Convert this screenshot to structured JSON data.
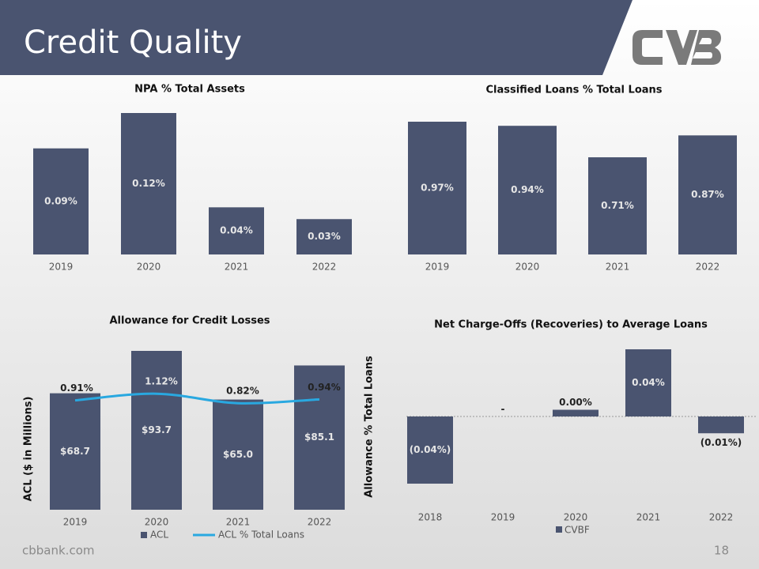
{
  "slide": {
    "title": "Credit Quality",
    "footer": "cbbank.com",
    "page_number": "18"
  },
  "chart_data": [
    {
      "type": "bar",
      "title": "NPA % Total Assets",
      "categories": [
        "2019",
        "2020",
        "2021",
        "2022"
      ],
      "values": [
        0.09,
        0.12,
        0.04,
        0.03
      ],
      "value_labels": [
        "0.09%",
        "0.12%",
        "0.04%",
        "0.03%"
      ],
      "color": "#4a5470"
    },
    {
      "type": "bar",
      "title": "Classified Loans % Total Loans",
      "categories": [
        "2019",
        "2020",
        "2021",
        "2022"
      ],
      "values": [
        0.97,
        0.94,
        0.71,
        0.87
      ],
      "value_labels": [
        "0.97%",
        "0.94%",
        "0.71%",
        "0.87%"
      ],
      "color": "#4a5470"
    },
    {
      "type": "combo",
      "title": "Allowance for Credit Losses",
      "ylabel": "ACL ($ in Millions)",
      "y2label": "Allowance % Total Loans",
      "categories": [
        "2019",
        "2020",
        "2021",
        "2022"
      ],
      "legend": "bottom",
      "series": [
        {
          "name": "ACL",
          "type": "bar",
          "color": "#4a5470",
          "values": [
            68.7,
            93.7,
            65.0,
            85.1
          ],
          "value_labels": [
            "$68.7",
            "$93.7",
            "$65.0",
            "$85.1"
          ]
        },
        {
          "name": "ACL % Total Loans",
          "type": "line",
          "axis": "y2",
          "color": "#29a8e0",
          "values": [
            0.91,
            1.12,
            0.82,
            0.94
          ],
          "value_labels": [
            "0.91%",
            "1.12%",
            "0.82%",
            "0.94%"
          ]
        }
      ]
    },
    {
      "type": "bar",
      "title": "Net Charge-Offs (Recoveries) to Average Loans",
      "categories": [
        "2018",
        "2019",
        "2020",
        "2021",
        "2022"
      ],
      "legend": "bottom",
      "series": [
        {
          "name": "CVBF",
          "color": "#4a5470",
          "values": [
            -0.04,
            0,
            0.004,
            0.04,
            -0.01
          ],
          "value_labels": [
            "(0.04%)",
            "-",
            "0.00%",
            "0.04%",
            "(0.01%)"
          ]
        }
      ]
    }
  ]
}
